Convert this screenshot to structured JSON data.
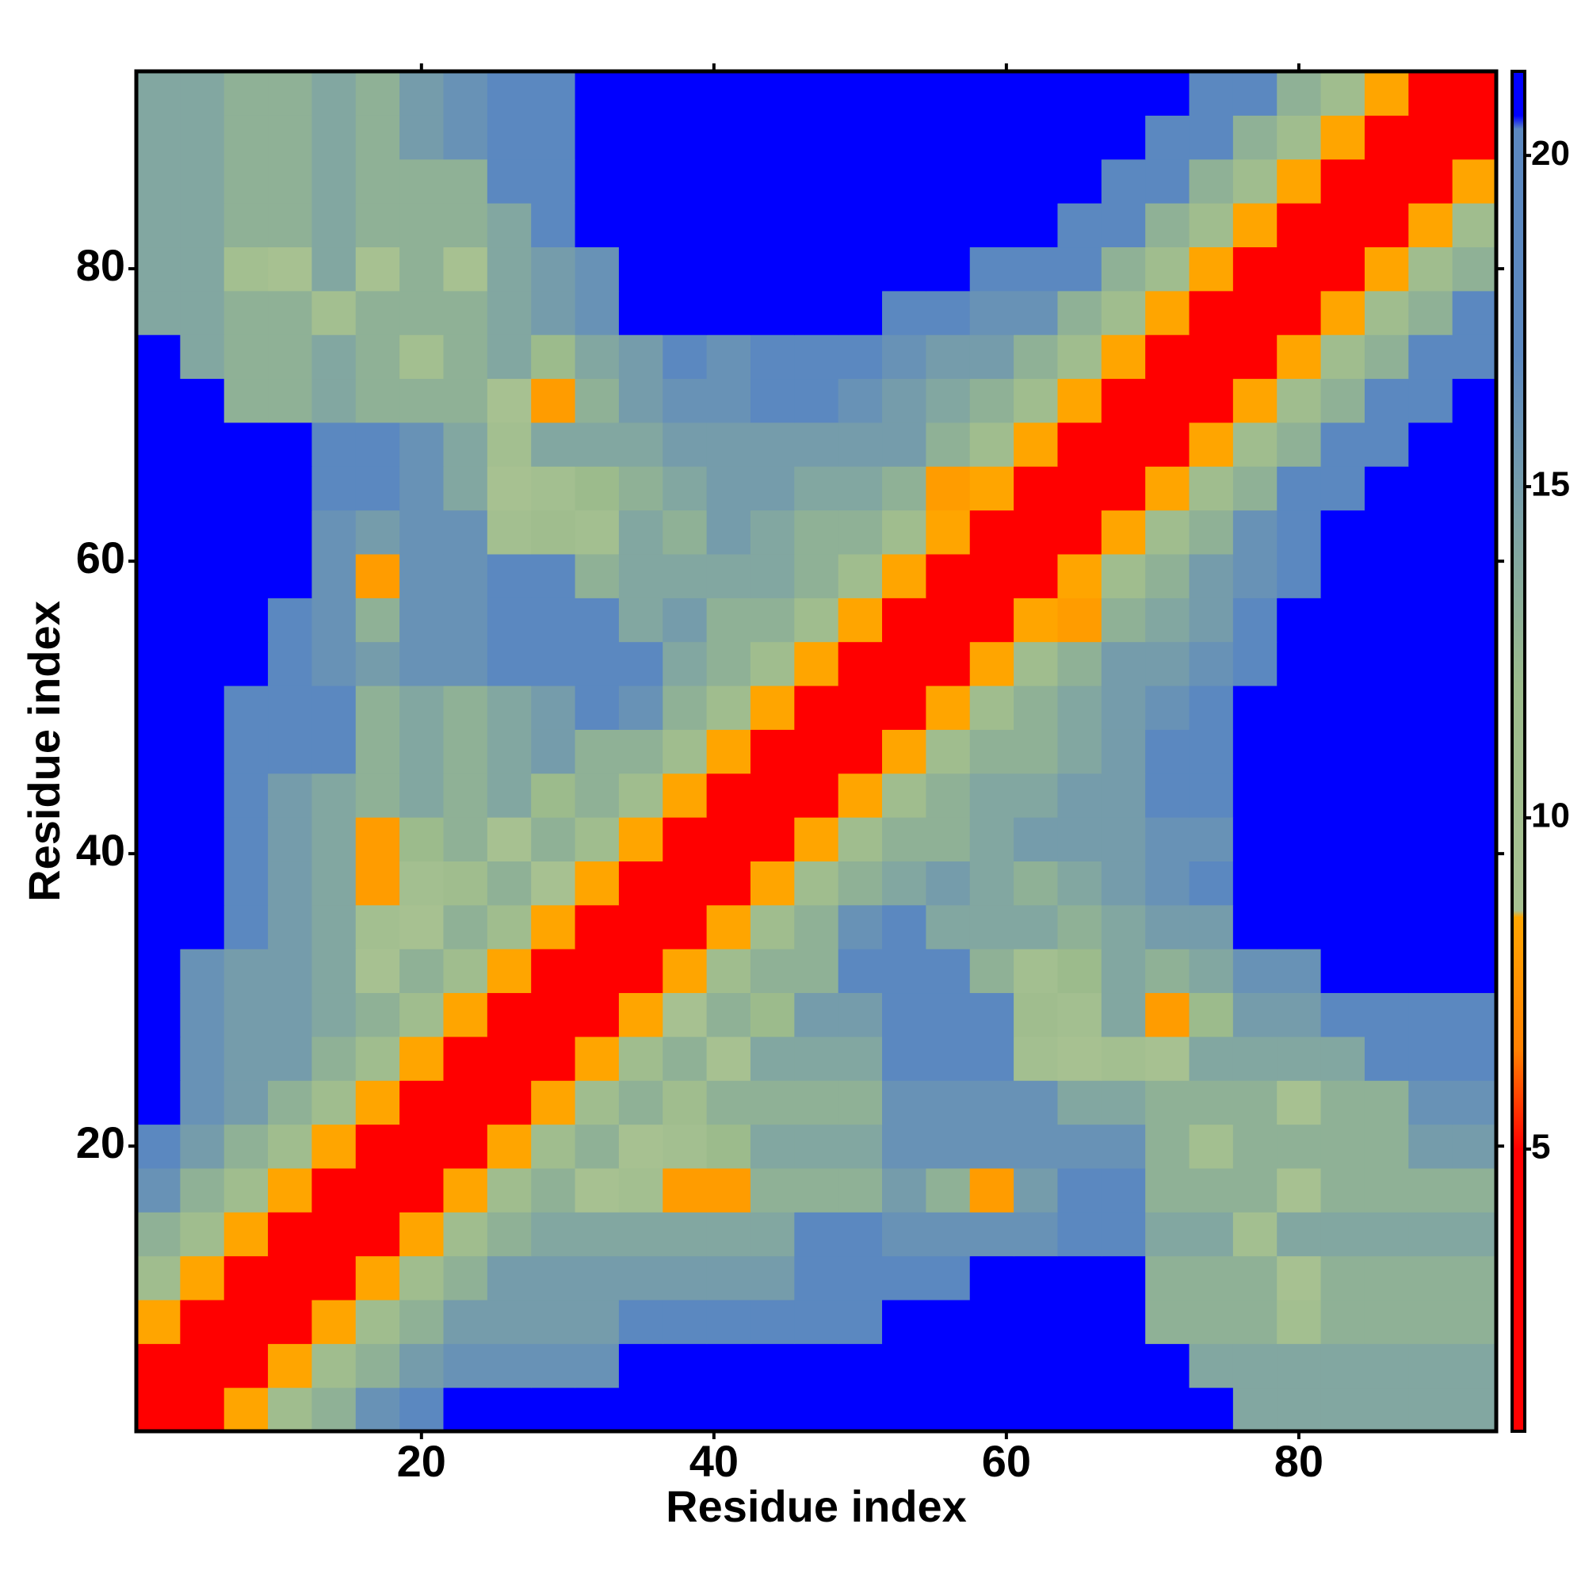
{
  "chart_data": {
    "type": "heatmap",
    "xlabel": "Residue index",
    "ylabel": "Residue index",
    "xlim": [
      0.5,
      93.5
    ],
    "ylim": [
      0.5,
      93.5
    ],
    "xticks": [
      20,
      40,
      60,
      80
    ],
    "yticks": [
      20,
      40,
      60,
      80
    ],
    "bins": [
      0.5,
      3.5,
      6.5,
      9.5,
      12.5,
      15.5,
      18.5,
      21.5,
      24.5,
      27.5,
      30.5,
      33.5,
      36.5,
      39.5,
      42.5,
      45.5,
      48.5,
      51.5,
      54.5,
      57.5,
      60.5,
      63.5,
      66.5,
      69.5,
      72.5,
      75.5,
      78.5,
      81.5,
      84.5,
      87.5,
      90.5,
      93.5
    ],
    "symmetric": true,
    "zlim": [
      0.74,
      21.27
    ],
    "zticks": [
      5,
      10,
      15,
      20
    ],
    "colorscale": [
      [
        0.74,
        "#ff0000"
      ],
      [
        5,
        "#ff0000"
      ],
      [
        6.5,
        "#ff8000"
      ],
      [
        8.5,
        "#ffa500"
      ],
      [
        8.6,
        "#a8c292"
      ],
      [
        12,
        "#9cbb8c"
      ],
      [
        17,
        "#5b88c0"
      ],
      [
        20.4,
        "#5b88c0"
      ],
      [
        20.6,
        "#0000ff"
      ],
      [
        21.27,
        "#0000ff"
      ]
    ],
    "values": [
      [
        3.8,
        4.6,
        8.5,
        11,
        13,
        16,
        17,
        21,
        21,
        21,
        21,
        21,
        21,
        21,
        21,
        21,
        21,
        21,
        21,
        21,
        21,
        21,
        21,
        21,
        21,
        14,
        14,
        14,
        14,
        14,
        14
      ],
      [
        3.8,
        4.6,
        8.5,
        11,
        13,
        15,
        16,
        16,
        16,
        16,
        21,
        21,
        21,
        21,
        21,
        21,
        21,
        21,
        21,
        21,
        21,
        21,
        21,
        14,
        14,
        14,
        14,
        14,
        14,
        14
      ],
      [
        3.8,
        4.6,
        8.5,
        11,
        13,
        15,
        15,
        15,
        15,
        19,
        19,
        19,
        19,
        19,
        19,
        21,
        21,
        21,
        21,
        21,
        21,
        13,
        13,
        13,
        10,
        13,
        13,
        13,
        13
      ],
      [
        3.8,
        4.6,
        8.5,
        11,
        13,
        15,
        15,
        15,
        15,
        15,
        15,
        15,
        19,
        19,
        19,
        19,
        21,
        21,
        21,
        21,
        13,
        13,
        13,
        9,
        13,
        13,
        13,
        13
      ],
      [
        3.8,
        4.6,
        8.5,
        11,
        13,
        14,
        14,
        14,
        14,
        14,
        14,
        17,
        17,
        16,
        16,
        16,
        16,
        19,
        19,
        14,
        14,
        10,
        14,
        14,
        14,
        14,
        14
      ],
      [
        3.8,
        4.6,
        8.5,
        11,
        13,
        9,
        10,
        8,
        8,
        13,
        13,
        13,
        15,
        13,
        8,
        15,
        18,
        18,
        13,
        13,
        13,
        9,
        13,
        13,
        13,
        13
      ],
      [
        3.8,
        4.6,
        8.5,
        11,
        13,
        9,
        10,
        12,
        14,
        14,
        14,
        16,
        16,
        16,
        16,
        16,
        16,
        13,
        10,
        13,
        13,
        13,
        13,
        15,
        15
      ],
      [
        3.8,
        4.6,
        8.5,
        11,
        13,
        11,
        13,
        13,
        13,
        13,
        16,
        16,
        16,
        16,
        14,
        14,
        13,
        13,
        13,
        9,
        13,
        13,
        16,
        16
      ],
      [
        3.8,
        4.6,
        8.5,
        11,
        13,
        9,
        14,
        14,
        14,
        19,
        19,
        19,
        10,
        9,
        10,
        9,
        14,
        14,
        14,
        14,
        17,
        17,
        17
      ],
      [
        3.8,
        4.6,
        8.5,
        9,
        13,
        12,
        15,
        15,
        20,
        20,
        20,
        11,
        10,
        14,
        8,
        12,
        15,
        15,
        19,
        19,
        19,
        19
      ],
      [
        3.8,
        4.6,
        8.5,
        11,
        13,
        13,
        18,
        20,
        20,
        13,
        10,
        12,
        14,
        13,
        14,
        16,
        16,
        21,
        21,
        21,
        21
      ],
      [
        3.8,
        4.6,
        8.5,
        11,
        13,
        16,
        18,
        14,
        14,
        14,
        13,
        14,
        15,
        15,
        21,
        21,
        21,
        21,
        21,
        21
      ],
      [
        3.8,
        4.6,
        8.5,
        11,
        13,
        14,
        15,
        14,
        13,
        14,
        15,
        16,
        17,
        21,
        21,
        21,
        21,
        21,
        21
      ],
      [
        3.8,
        4.6,
        8.5,
        11,
        13,
        13,
        14,
        15,
        15,
        15,
        16,
        16,
        21,
        21,
        21,
        21,
        21,
        21
      ],
      [
        3.8,
        4.6,
        8.5,
        11,
        13,
        14,
        14,
        15,
        15,
        17,
        19,
        21,
        21,
        21,
        21,
        21,
        21
      ],
      [
        3.8,
        4.6,
        8.5,
        11,
        13,
        13,
        14,
        15,
        17,
        19,
        21,
        21,
        21,
        21,
        21,
        21
      ],
      [
        3.8,
        4.6,
        8.5,
        11,
        13,
        14,
        15,
        16,
        18,
        21,
        21,
        21,
        21,
        21,
        21
      ],
      [
        3.8,
        4.6,
        8.5,
        11,
        13,
        15,
        15,
        16,
        18,
        21,
        21,
        21,
        21,
        21
      ],
      [
        3.8,
        4.6,
        8.5,
        8,
        13,
        14,
        15,
        17,
        21,
        21,
        21,
        21,
        21
      ],
      [
        3.8,
        4.6,
        8.5,
        11,
        13,
        15,
        16,
        19,
        21,
        21,
        21,
        21
      ],
      [
        3.8,
        4.6,
        8.5,
        11,
        13,
        16,
        18,
        21,
        21,
        21,
        21
      ],
      [
        3.8,
        4.6,
        8.5,
        11,
        13,
        17,
        19,
        21,
        21,
        21
      ],
      [
        3.8,
        4.6,
        8.5,
        11,
        13,
        17,
        19,
        21,
        21
      ],
      [
        3.8,
        4.6,
        8.5,
        11,
        13,
        17,
        19,
        21
      ],
      [
        3.8,
        4.6,
        8.5,
        11,
        13,
        17,
        19
      ],
      [
        3.8,
        4.6,
        8.5,
        11,
        13,
        17
      ],
      [
        3.8,
        4.6,
        8.5,
        11,
        13
      ],
      [
        3.8,
        4.6,
        8.5,
        11
      ],
      [
        3.8,
        4.6,
        8.5
      ],
      [
        3.8,
        4.6
      ],
      [
        3.8
      ]
    ]
  }
}
